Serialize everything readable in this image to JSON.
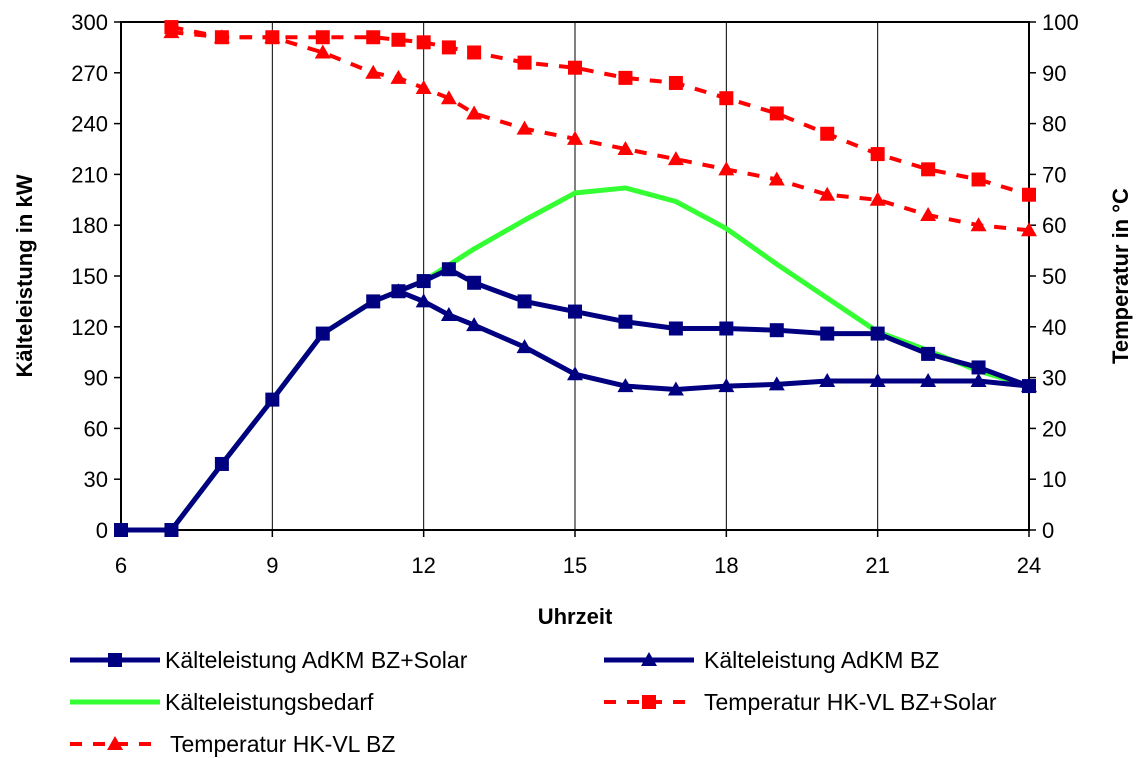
{
  "chart_data": {
    "type": "line",
    "title": "",
    "xlabel": "Uhrzeit",
    "ylabel": "Kälteleistung in kW",
    "y2label": "Temperatur in °C",
    "xlim": [
      6,
      24
    ],
    "ylim": [
      0,
      300
    ],
    "y2lim": [
      0,
      100
    ],
    "xticks": [
      6,
      9,
      12,
      15,
      18,
      21,
      24
    ],
    "yticks": [
      0,
      30,
      60,
      90,
      120,
      150,
      180,
      210,
      240,
      270,
      300
    ],
    "y2ticks": [
      0,
      10,
      20,
      30,
      40,
      50,
      60,
      70,
      80,
      90,
      100
    ],
    "grid": "vertical",
    "legend_position": "bottom",
    "series": [
      {
        "name": "Kälteleistung AdKM BZ+Solar",
        "axis": "left",
        "color": "#000080",
        "marker": "square",
        "line": "solid",
        "x": [
          6,
          7,
          8,
          9,
          10,
          11,
          11.5,
          12,
          12.5,
          13,
          14,
          15,
          16,
          17,
          18,
          19,
          20,
          21,
          22,
          23,
          24
        ],
        "y": [
          0,
          0,
          39,
          77,
          116,
          135,
          141,
          147,
          154,
          146,
          135,
          129,
          123,
          119,
          119,
          118,
          116,
          116,
          104,
          96,
          85
        ]
      },
      {
        "name": "Kälteleistung AdKM BZ",
        "axis": "left",
        "color": "#000080",
        "marker": "triangle",
        "line": "solid",
        "x": [
          11.5,
          12,
          12.5,
          13,
          14,
          15,
          16,
          17,
          18,
          19,
          20,
          21,
          22,
          23,
          24
        ],
        "y": [
          141,
          135,
          127,
          121,
          108,
          92,
          85,
          83,
          85,
          86,
          88,
          88,
          88,
          88,
          85
        ]
      },
      {
        "name": "Kälteleistungsbedarf",
        "axis": "left",
        "color": "#33ff33",
        "marker": "none",
        "line": "solid",
        "x": [
          6,
          7,
          8,
          9,
          10,
          11,
          12,
          13,
          14,
          15,
          16,
          17,
          18,
          19,
          20,
          21,
          22,
          23,
          24
        ],
        "y": [
          0,
          0,
          39,
          77,
          116,
          135,
          147,
          166,
          183,
          199,
          202,
          194,
          178,
          157,
          137,
          117,
          106,
          94,
          85
        ]
      },
      {
        "name": "Temperatur HK-VL BZ+Solar",
        "axis": "right",
        "color": "#ff0000",
        "marker": "square",
        "line": "dashed",
        "x": [
          7,
          8,
          9,
          10,
          11,
          11.5,
          12,
          12.5,
          13,
          14,
          15,
          16,
          17,
          18,
          19,
          20,
          21,
          22,
          23,
          24
        ],
        "y": [
          99,
          97,
          97,
          97,
          97,
          96.5,
          96,
          95,
          94,
          92,
          91,
          89,
          88,
          85,
          82,
          78,
          74,
          71,
          69,
          66
        ]
      },
      {
        "name": "Temperatur HK-VL BZ",
        "axis": "right",
        "color": "#ff0000",
        "marker": "triangle",
        "line": "dashed",
        "x": [
          7,
          8,
          9,
          10,
          11,
          11.5,
          12,
          12.5,
          13,
          14,
          15,
          16,
          17,
          18,
          19,
          20,
          21,
          22,
          23,
          24
        ],
        "y": [
          98,
          97,
          97,
          94,
          90,
          89,
          87,
          85,
          82,
          79,
          77,
          75,
          73,
          71,
          69,
          66,
          65,
          62,
          60,
          59
        ]
      }
    ],
    "legend_order": [
      0,
      1,
      2,
      3,
      4
    ]
  }
}
